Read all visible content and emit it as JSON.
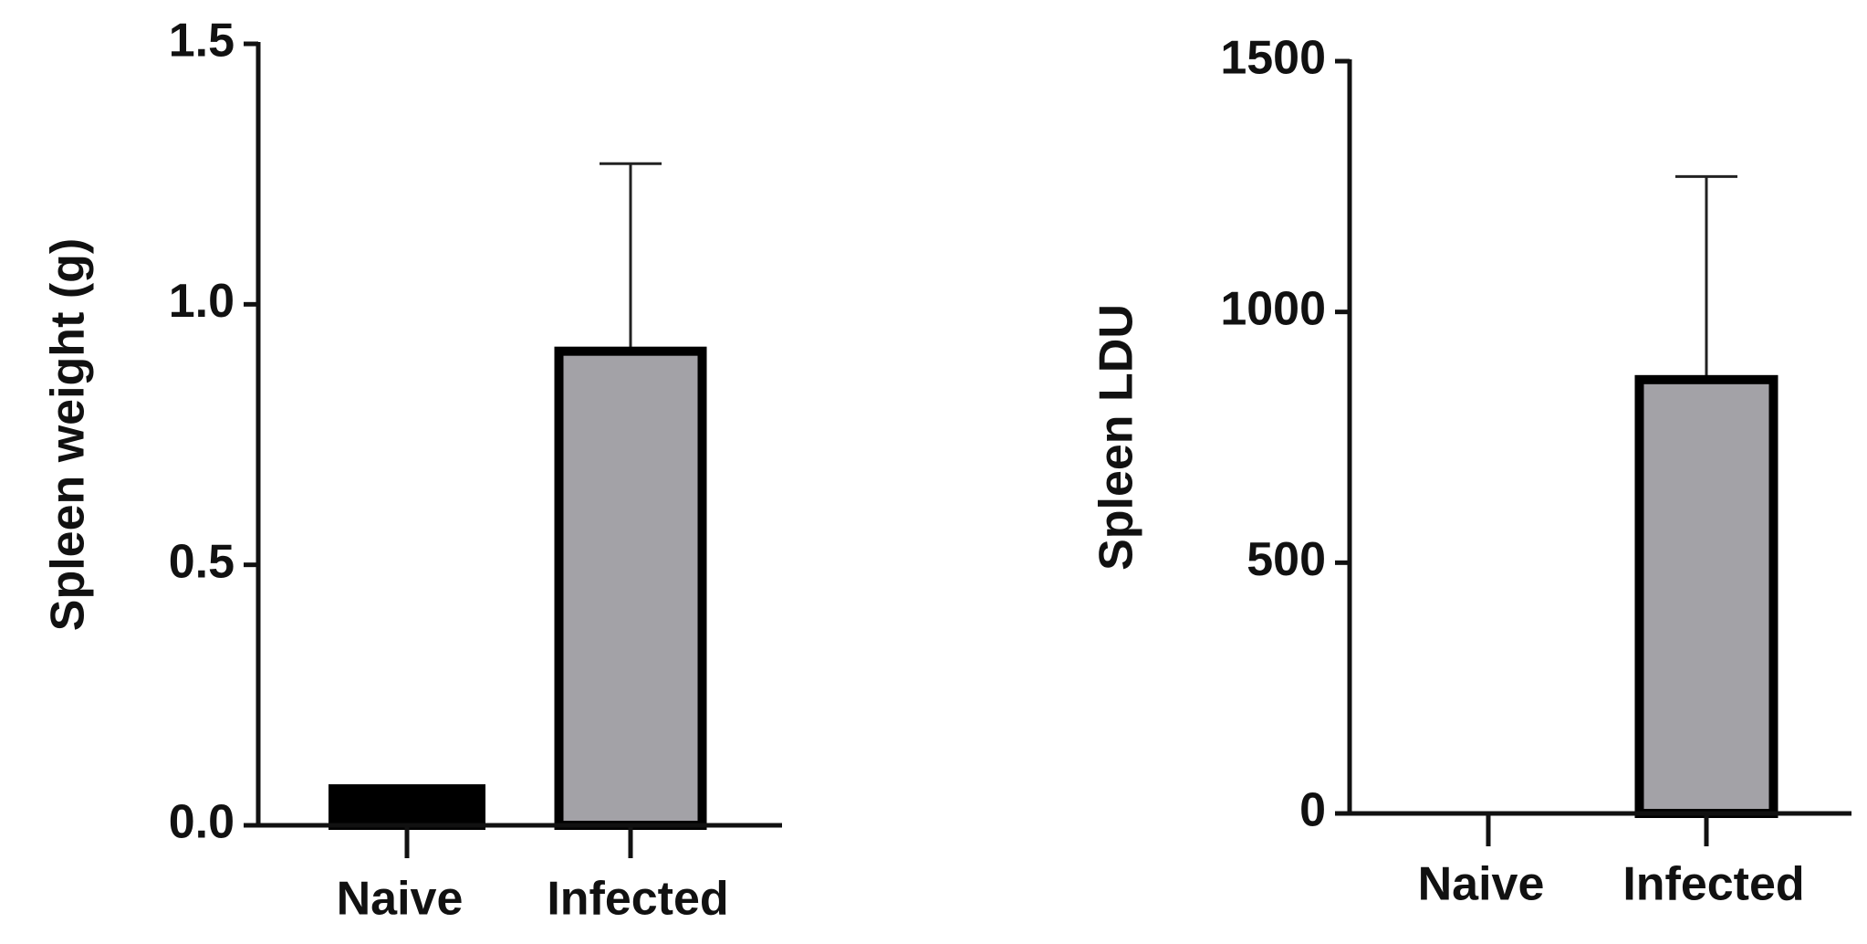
{
  "chart_data": [
    {
      "type": "bar",
      "ylabel": "Spleen weight (g)",
      "categories": [
        "Naive",
        "Infected"
      ],
      "values": [
        0.07,
        0.91
      ],
      "errors": [
        null,
        0.36
      ],
      "colors": [
        "#000000",
        "#a3a2a7"
      ],
      "ylim": [
        0,
        1.5
      ],
      "yticks": [
        {
          "value": 0,
          "label": "0.0"
        },
        0.5,
        {
          "value": 1,
          "label": "1.0"
        },
        1.5
      ]
    },
    {
      "type": "bar",
      "ylabel": "Spleen LDU",
      "categories": [
        "Naive",
        "Infected"
      ],
      "values": [
        0,
        865
      ],
      "errors": [
        null,
        405
      ],
      "colors": [
        "#000000",
        "#a3a2a7"
      ],
      "ylim": [
        0,
        1500
      ],
      "yticks": [
        0,
        500,
        1000,
        1500
      ]
    }
  ]
}
